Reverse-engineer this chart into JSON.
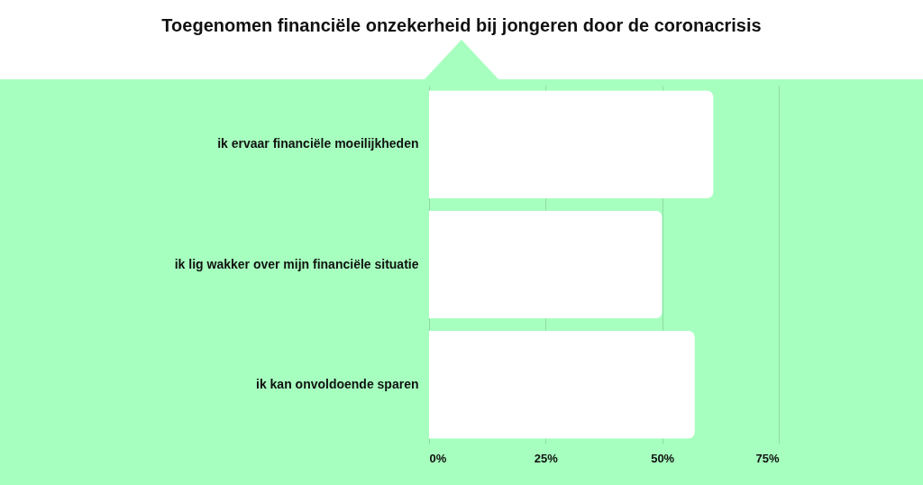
{
  "chart_data": {
    "type": "bar",
    "orientation": "horizontal",
    "title": "Toegenomen financiële onzekerheid bij jongeren door de coronacrisis",
    "categories": [
      "ik ervaar financiële moeilijkheden",
      "ik lig wakker over mijn financiële situatie",
      "ik kan onvoldoende sparen"
    ],
    "values": [
      61,
      50,
      57
    ],
    "color": "#ffffff",
    "xlim": [
      0,
      75
    ],
    "xticks": [
      {
        "value": 0,
        "label": "0%"
      },
      {
        "value": 25,
        "label": "25%"
      },
      {
        "value": 50,
        "label": "50%"
      },
      {
        "value": 75,
        "label": "75%"
      }
    ],
    "grid": "x"
  }
}
